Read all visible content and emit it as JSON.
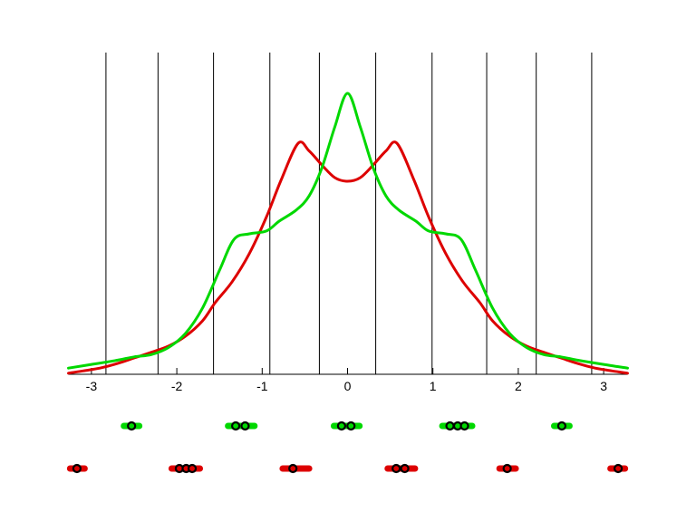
{
  "figure": {
    "title": "",
    "background_color": "#ffffff"
  },
  "chart_data": {
    "type": "line",
    "title": "",
    "xlabel": "",
    "ylabel": "",
    "x_axis": {
      "ticks": [
        -3,
        -2,
        -1,
        0,
        1,
        2,
        3
      ],
      "tick_labels": [
        "-3",
        "-2",
        "-1",
        "0",
        "1",
        "2",
        "3"
      ],
      "range": [
        -3.27,
        3.28
      ]
    },
    "y_axis": {
      "visible": false,
      "range_relative_density": [
        0,
        1.1
      ]
    },
    "grid": {
      "vertical_bin_edges": [
        -2.83,
        -2.22,
        -1.57,
        -0.91,
        -0.33,
        0.33,
        0.99,
        1.63,
        2.21,
        2.86
      ],
      "color": "#000000"
    },
    "legend": {
      "visible": false
    },
    "series": [
      {
        "name": "kde-red-bimodal",
        "color": "#dd0000",
        "points": [
          [
            -3.27,
            0.004
          ],
          [
            -3.1,
            0.012
          ],
          [
            -2.9,
            0.022
          ],
          [
            -2.7,
            0.038
          ],
          [
            -2.5,
            0.058
          ],
          [
            -2.3,
            0.078
          ],
          [
            -2.1,
            0.1
          ],
          [
            -1.9,
            0.135
          ],
          [
            -1.7,
            0.19
          ],
          [
            -1.55,
            0.255
          ],
          [
            -1.35,
            0.33
          ],
          [
            -1.15,
            0.43
          ],
          [
            -0.95,
            0.56
          ],
          [
            -0.78,
            0.69
          ],
          [
            -0.58,
            0.822
          ],
          [
            -0.45,
            0.795
          ],
          [
            -0.3,
            0.745
          ],
          [
            -0.15,
            0.7
          ],
          [
            0.0,
            0.687
          ],
          [
            0.15,
            0.7
          ],
          [
            0.3,
            0.745
          ],
          [
            0.45,
            0.795
          ],
          [
            0.58,
            0.822
          ],
          [
            0.78,
            0.69
          ],
          [
            0.95,
            0.56
          ],
          [
            1.15,
            0.43
          ],
          [
            1.35,
            0.33
          ],
          [
            1.55,
            0.255
          ],
          [
            1.7,
            0.19
          ],
          [
            1.9,
            0.135
          ],
          [
            2.1,
            0.1
          ],
          [
            2.3,
            0.078
          ],
          [
            2.5,
            0.058
          ],
          [
            2.7,
            0.038
          ],
          [
            2.9,
            0.022
          ],
          [
            3.1,
            0.012
          ],
          [
            3.28,
            0.004
          ]
        ]
      },
      {
        "name": "kde-green-unimodal",
        "color": "#00d800",
        "points": [
          [
            -3.27,
            0.022
          ],
          [
            -3.0,
            0.035
          ],
          [
            -2.7,
            0.05
          ],
          [
            -2.5,
            0.062
          ],
          [
            -2.3,
            0.07
          ],
          [
            -2.1,
            0.095
          ],
          [
            -1.9,
            0.145
          ],
          [
            -1.7,
            0.235
          ],
          [
            -1.5,
            0.37
          ],
          [
            -1.33,
            0.48
          ],
          [
            -1.15,
            0.5
          ],
          [
            -0.95,
            0.51
          ],
          [
            -0.8,
            0.545
          ],
          [
            -0.6,
            0.585
          ],
          [
            -0.45,
            0.635
          ],
          [
            -0.3,
            0.735
          ],
          [
            -0.15,
            0.88
          ],
          [
            0.0,
            1.0
          ],
          [
            0.15,
            0.88
          ],
          [
            0.3,
            0.735
          ],
          [
            0.45,
            0.635
          ],
          [
            0.6,
            0.585
          ],
          [
            0.8,
            0.545
          ],
          [
            0.95,
            0.51
          ],
          [
            1.15,
            0.5
          ],
          [
            1.33,
            0.48
          ],
          [
            1.5,
            0.37
          ],
          [
            1.7,
            0.235
          ],
          [
            1.9,
            0.145
          ],
          [
            2.1,
            0.095
          ],
          [
            2.3,
            0.07
          ],
          [
            2.5,
            0.062
          ],
          [
            2.7,
            0.05
          ],
          [
            3.0,
            0.035
          ],
          [
            3.28,
            0.022
          ]
        ]
      }
    ],
    "rug_rows": [
      {
        "name": "green-sample-points",
        "color": "#00d800",
        "row": "upper",
        "clusters": [
          {
            "bar": [
              -2.62,
              -2.44
            ],
            "points": [
              -2.53
            ]
          },
          {
            "bar": [
              -1.4,
              -1.09
            ],
            "points": [
              -1.31,
              -1.2
            ]
          },
          {
            "bar": [
              -0.16,
              0.14
            ],
            "points": [
              -0.07,
              0.04
            ]
          },
          {
            "bar": [
              1.11,
              1.46
            ],
            "points": [
              1.2,
              1.29,
              1.37
            ]
          },
          {
            "bar": [
              2.42,
              2.6
            ],
            "points": [
              2.51
            ]
          }
        ]
      },
      {
        "name": "red-sample-points",
        "color": "#dd0000",
        "row": "lower",
        "clusters": [
          {
            "bar": [
              -3.25,
              -3.08
            ],
            "points": [
              -3.17
            ]
          },
          {
            "bar": [
              -2.06,
              -1.73
            ],
            "points": [
              -1.97,
              -1.89,
              -1.82
            ]
          },
          {
            "bar": [
              -0.76,
              -0.45
            ],
            "points": [
              -0.64
            ]
          },
          {
            "bar": [
              0.47,
              0.79
            ],
            "points": [
              0.57,
              0.67
            ]
          },
          {
            "bar": [
              1.78,
              1.97
            ],
            "points": [
              1.87
            ]
          },
          {
            "bar": [
              3.08,
              3.25
            ],
            "points": [
              3.17
            ]
          }
        ]
      }
    ],
    "marker_style": {
      "shape": "circle",
      "fill_follows_series": true,
      "outline_color": "#000000"
    }
  }
}
